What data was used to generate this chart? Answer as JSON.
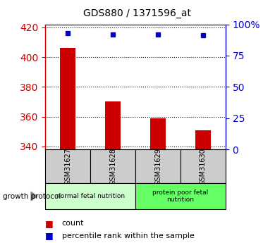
{
  "title": "GDS880 / 1371596_at",
  "samples": [
    "GSM31627",
    "GSM31628",
    "GSM31629",
    "GSM31630"
  ],
  "counts": [
    406,
    370,
    359,
    351
  ],
  "percentile_ranks": [
    93,
    92,
    92,
    91
  ],
  "ylim_left": [
    338,
    422
  ],
  "ylim_right": [
    0,
    100
  ],
  "yticks_left": [
    340,
    360,
    380,
    400,
    420
  ],
  "yticks_right": [
    0,
    25,
    50,
    75,
    100
  ],
  "ytick_labels_right": [
    "0",
    "25",
    "50",
    "75",
    "100%"
  ],
  "bar_color": "#cc0000",
  "dot_color": "#0000cc",
  "bar_width": 0.35,
  "groups": [
    {
      "label": "normal fetal nutrition",
      "samples": [
        0,
        1
      ],
      "color": "#ccffcc"
    },
    {
      "label": "protein poor fetal\nnutrition",
      "samples": [
        2,
        3
      ],
      "color": "#66ff66"
    }
  ],
  "group_label": "growth protocol",
  "legend_count_label": "count",
  "legend_percentile_label": "percentile rank within the sample",
  "left_tick_color": "#cc0000",
  "right_tick_color": "#0000cc",
  "sample_box_color": "#cccccc",
  "fig_bg": "#ffffff"
}
